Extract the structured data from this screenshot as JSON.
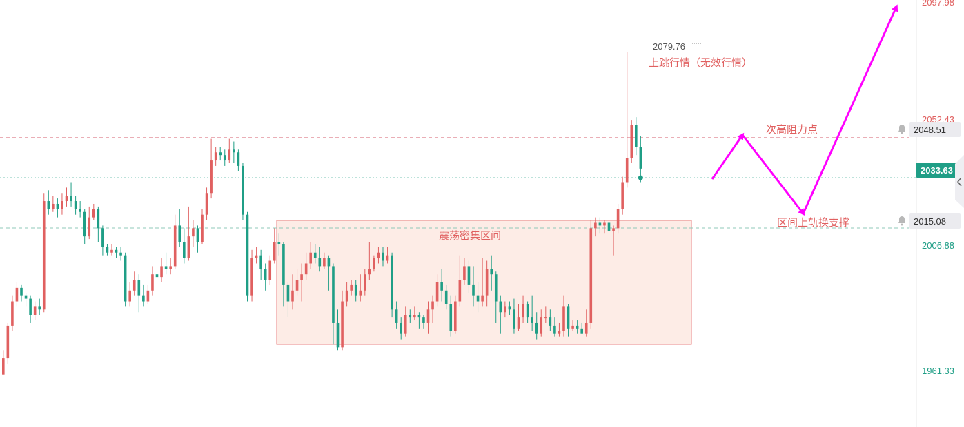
{
  "chart_data": {
    "type": "candlestick",
    "ylim": [
      1951,
      2098
    ],
    "colors": {
      "up": "#e06060",
      "down": "#1f9e86",
      "zone_fill": "#fdece6",
      "zone_stroke": "#e88080",
      "resistance_line": "#e7a3ac",
      "support_line": "#8fc9b8",
      "current_line": "#4db39d",
      "forecast": "#ff00ff",
      "current_badge": "#1f9e86",
      "annotation": "#e06060"
    },
    "price_axis": {
      "top_label": "2097.98",
      "resistance_partial": "2052.43",
      "resistance": "2048.51",
      "current": "2033.63",
      "support": "2015.08",
      "mid": "2006.88",
      "low": "1961.33"
    },
    "levels": {
      "resistance": 2048.51,
      "current": 2033.63,
      "support": 2015.08,
      "zone_low": 1970.5
    },
    "annotations": {
      "peak_value": "2079.76",
      "spike_label": "上跳行情（无效行情）",
      "resistance_label": "次高阻力点",
      "zone_label": "震荡密集区间",
      "support_label": "区间上轨换支撑"
    },
    "candles": [
      [
        1961,
        1967,
        1961,
        1970
      ],
      [
        1967,
        1979,
        1965,
        1980
      ],
      [
        1979,
        1988,
        1977,
        1990
      ],
      [
        1988,
        1993,
        1986,
        1995
      ],
      [
        1993,
        1990,
        1988,
        1994
      ],
      [
        1990,
        1989,
        1986,
        1991
      ],
      [
        1989,
        1983,
        1980,
        1990
      ],
      [
        1983,
        1986,
        1981,
        1988
      ],
      [
        1986,
        1985,
        1983,
        1989
      ],
      [
        1985,
        2025,
        1984,
        2028
      ],
      [
        2025,
        2022,
        2020,
        2029
      ],
      [
        2022,
        2024,
        2021,
        2027
      ],
      [
        2024,
        2022,
        2019,
        2026
      ],
      [
        2022,
        2025,
        2020,
        2028
      ],
      [
        2025,
        2027,
        2023,
        2030
      ],
      [
        2027,
        2025,
        2023,
        2032
      ],
      [
        2025,
        2022,
        2020,
        2027
      ],
      [
        2022,
        2021,
        2019,
        2025
      ],
      [
        2021,
        2012,
        2009,
        2022
      ],
      [
        2012,
        2019,
        2011,
        2023
      ],
      [
        2019,
        2022,
        2018,
        2024
      ],
      [
        2022,
        2015,
        2010,
        2023
      ],
      [
        2015,
        2008,
        2005,
        2016
      ],
      [
        2008,
        2006,
        2005,
        2009
      ],
      [
        2006,
        2007,
        2005,
        2009
      ],
      [
        2007,
        2006,
        2004,
        2008
      ],
      [
        2006,
        2005,
        2003,
        2008
      ],
      [
        2005,
        1988,
        1986,
        2006
      ],
      [
        1988,
        1992,
        1986,
        1995
      ],
      [
        1992,
        1996,
        1990,
        1999
      ],
      [
        1996,
        1990,
        1984,
        1998
      ],
      [
        1990,
        1988,
        1986,
        1994
      ],
      [
        1988,
        1992,
        1987,
        1994
      ],
      [
        1992,
        1998,
        1990,
        2001
      ],
      [
        1998,
        1997,
        1995,
        2002
      ],
      [
        1997,
        2001,
        1995,
        2004
      ],
      [
        2001,
        2000,
        1998,
        2006
      ],
      [
        2000,
        2001,
        1998,
        2004
      ],
      [
        2001,
        2016,
        2000,
        2020
      ],
      [
        2016,
        2010,
        2008,
        2022
      ],
      [
        2010,
        2004,
        2002,
        2015
      ],
      [
        2004,
        2012,
        2003,
        2023
      ],
      [
        2012,
        2015,
        2008,
        2018
      ],
      [
        2015,
        2010,
        2006,
        2016
      ],
      [
        2010,
        2020,
        2009,
        2022
      ],
      [
        2020,
        2028,
        2018,
        2030
      ],
      [
        2028,
        2040,
        2026,
        2048
      ],
      [
        2040,
        2043,
        2038,
        2045
      ],
      [
        2043,
        2042,
        2040,
        2045
      ],
      [
        2042,
        2040,
        2038,
        2044
      ],
      [
        2040,
        2044,
        2039,
        2048
      ],
      [
        2044,
        2043,
        2039,
        2047
      ],
      [
        2043,
        2038,
        2036,
        2044
      ],
      [
        2038,
        2020,
        2018,
        2039
      ],
      [
        2020,
        1990,
        1988,
        2021
      ],
      [
        1990,
        2004,
        1988,
        2007
      ],
      [
        2004,
        2005,
        2002,
        2008
      ],
      [
        2005,
        2000,
        1996,
        2007
      ],
      [
        2000,
        1996,
        1992,
        2002
      ],
      [
        1996,
        2003,
        1994,
        2005
      ],
      [
        2003,
        2010,
        2002,
        2015
      ],
      [
        2010,
        2009,
        2005,
        2013
      ],
      [
        2009,
        1994,
        1986,
        2010
      ],
      [
        1994,
        1988,
        1982,
        1995
      ],
      [
        1988,
        1992,
        1985,
        1998
      ],
      [
        1992,
        1996,
        1990,
        2000
      ],
      [
        1996,
        1998,
        1988,
        2002
      ],
      [
        1998,
        2002,
        1996,
        2006
      ],
      [
        2002,
        2006,
        2000,
        2010
      ],
      [
        2006,
        2004,
        2002,
        2009
      ],
      [
        2004,
        2001,
        1999,
        2008
      ],
      [
        2001,
        2004,
        2000,
        2006
      ],
      [
        2004,
        2001,
        1992,
        2005
      ],
      [
        2001,
        1980,
        1972,
        2002
      ],
      [
        1980,
        1971,
        1970,
        1985
      ],
      [
        1971,
        1988,
        1970,
        1992
      ],
      [
        1988,
        1992,
        1986,
        1995
      ],
      [
        1992,
        1994,
        1990,
        1996
      ],
      [
        1994,
        1990,
        1988,
        1996
      ],
      [
        1990,
        1992,
        1988,
        1998
      ],
      [
        1992,
        1998,
        1990,
        2000
      ],
      [
        1998,
        2000,
        1996,
        2010
      ],
      [
        2000,
        2004,
        1999,
        2005
      ],
      [
        2004,
        2006,
        2002,
        2008
      ],
      [
        2006,
        2003,
        2001,
        2008
      ],
      [
        2003,
        2005,
        2002,
        2008
      ],
      [
        2005,
        1985,
        1982,
        2006
      ],
      [
        1985,
        1980,
        1978,
        1988
      ],
      [
        1980,
        1976,
        1974,
        1982
      ],
      [
        1976,
        1983,
        1975,
        1986
      ],
      [
        1983,
        1982,
        1980,
        1985
      ],
      [
        1982,
        1983,
        1981,
        1986
      ],
      [
        1983,
        1982,
        1978,
        1984
      ],
      [
        1982,
        1980,
        1978,
        1983
      ],
      [
        1980,
        1985,
        1976,
        1988
      ],
      [
        1985,
        1988,
        1980,
        1990
      ],
      [
        1988,
        1995,
        1986,
        1998
      ],
      [
        1995,
        1992,
        1988,
        2000
      ],
      [
        1992,
        1987,
        1985,
        1994
      ],
      [
        1987,
        1977,
        1975,
        1990
      ],
      [
        1977,
        1988,
        1976,
        1990
      ],
      [
        1988,
        1996,
        1986,
        2005
      ],
      [
        1996,
        2001,
        1994,
        2004
      ],
      [
        2001,
        1994,
        1991,
        2003
      ],
      [
        1994,
        1990,
        1986,
        2001
      ],
      [
        1990,
        1988,
        1984,
        1995
      ],
      [
        1988,
        1990,
        1986,
        2004
      ],
      [
        1990,
        2000,
        1986,
        2003
      ],
      [
        2000,
        1998,
        1992,
        2005
      ],
      [
        1998,
        1988,
        1980,
        1999
      ],
      [
        1988,
        1984,
        1976,
        1990
      ],
      [
        1984,
        1986,
        1982,
        1988
      ],
      [
        1986,
        1985,
        1983,
        1988
      ],
      [
        1985,
        1978,
        1976,
        1989
      ],
      [
        1978,
        1982,
        1977,
        1987
      ],
      [
        1982,
        1987,
        1980,
        1990
      ],
      [
        1987,
        1982,
        1980,
        1988
      ],
      [
        1982,
        1980,
        1977,
        1990
      ],
      [
        1980,
        1976,
        1974,
        1984
      ],
      [
        1976,
        1982,
        1975,
        1985
      ],
      [
        1982,
        1982,
        1980,
        1986
      ],
      [
        1982,
        1979,
        1977,
        1985
      ],
      [
        1979,
        1976,
        1975,
        1982
      ],
      [
        1976,
        1977,
        1975,
        1980
      ],
      [
        1977,
        1986,
        1975,
        1990
      ],
      [
        1986,
        1978,
        1975,
        1987
      ],
      [
        1978,
        1979,
        1977,
        1981
      ],
      [
        1979,
        1978,
        1976,
        1981
      ],
      [
        1978,
        1976,
        1976,
        1980
      ],
      [
        1976,
        1980,
        1975,
        1985
      ],
      [
        1980,
        2015,
        1978,
        2018
      ],
      [
        2015,
        2017,
        2012,
        2019
      ],
      [
        2017,
        2016,
        2013,
        2019
      ],
      [
        2016,
        2017,
        2013,
        2018
      ],
      [
        2017,
        2014,
        2012,
        2019
      ],
      [
        2014,
        2015,
        2005,
        2016
      ],
      [
        2015,
        2022,
        2013,
        2024
      ],
      [
        2022,
        2032,
        2020,
        2034
      ],
      [
        2032,
        2041,
        2030,
        2080
      ],
      [
        2041,
        2053,
        2039,
        2055
      ],
      [
        2053,
        2045,
        2042,
        2056
      ],
      [
        2045,
        2037,
        2032,
        2049
      ]
    ]
  }
}
